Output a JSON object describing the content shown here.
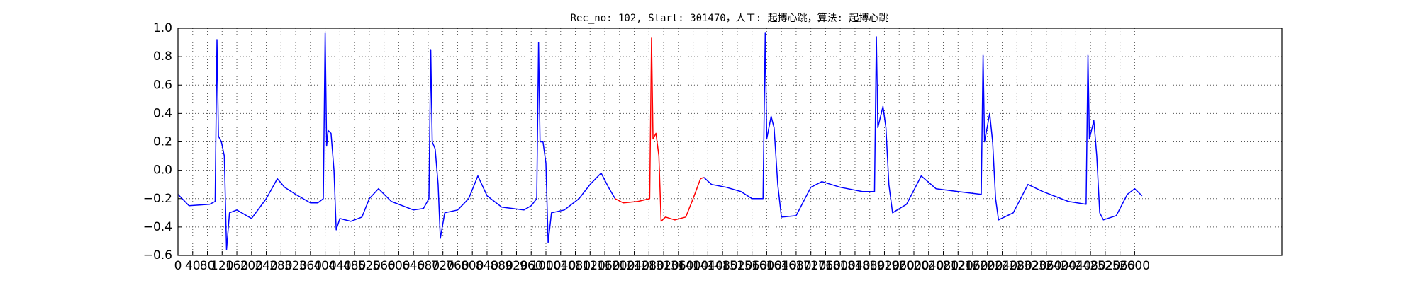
{
  "chart_data": {
    "type": "line",
    "title": "Rec_no: 102, Start: 301470，人工: 起搏心跳，算法: 起搏心跳",
    "xlim": [
      0,
      3000
    ],
    "ylim": [
      -0.6,
      1.0
    ],
    "grid": true,
    "xticks": [
      0,
      40,
      80,
      120,
      160,
      200,
      240,
      280,
      320,
      360,
      400,
      440,
      480,
      520,
      560,
      600,
      640,
      680,
      720,
      760,
      800,
      840,
      880,
      920,
      960,
      1000,
      1040,
      1080,
      1120,
      1160,
      1200,
      1240,
      1280,
      1320,
      1360,
      1400,
      1440,
      1480,
      1520,
      1560,
      1600,
      1640,
      1680,
      1720,
      1760,
      1800,
      1840,
      1880,
      1920,
      1960,
      2000,
      2040,
      2080,
      2120,
      2160,
      2200,
      2240,
      2280,
      2320,
      2360,
      2400,
      2440,
      2480,
      2520,
      2560,
      2600
    ],
    "yticks": [
      {
        "value": -0.6,
        "label": "−0.6"
      },
      {
        "value": -0.4,
        "label": "−0.4"
      },
      {
        "value": -0.2,
        "label": "−0.2"
      },
      {
        "value": 0,
        "label": "0.0"
      },
      0.2,
      0.4,
      0.6,
      0.8,
      {
        "value": 1,
        "label": "1.0"
      }
    ],
    "series": [
      {
        "color": "#0000ff",
        "x": [
          0,
          30,
          86,
          101,
          106,
          110,
          118,
          126,
          132,
          140,
          160,
          200,
          240,
          270,
          290,
          320,
          360,
          380,
          395,
          400,
          404,
          408,
          416,
          424,
          430,
          440,
          470,
          500,
          520,
          545,
          580,
          640,
          667,
          682,
          687,
          691,
          699,
          707,
          713,
          725,
          760,
          790,
          815,
          840,
          880,
          940,
          960,
          975,
          980,
          984,
          992,
          1000,
          1006,
          1015,
          1050,
          1090,
          1120,
          1150,
          1170,
          1188
        ],
        "values": [
          -0.17,
          -0.25,
          -0.24,
          -0.22,
          0.92,
          0.24,
          0.2,
          0.1,
          -0.56,
          -0.3,
          -0.28,
          -0.34,
          -0.2,
          -0.06,
          -0.12,
          -0.17,
          -0.23,
          -0.23,
          -0.2,
          0.97,
          0.17,
          0.28,
          0.26,
          0.0,
          -0.42,
          -0.34,
          -0.36,
          -0.33,
          -0.2,
          -0.13,
          -0.22,
          -0.28,
          -0.27,
          -0.2,
          0.85,
          0.2,
          0.15,
          -0.1,
          -0.48,
          -0.3,
          -0.28,
          -0.2,
          -0.04,
          -0.18,
          -0.26,
          -0.28,
          -0.25,
          -0.2,
          0.9,
          0.2,
          0.2,
          0.05,
          -0.51,
          -0.3,
          -0.28,
          -0.2,
          -0.1,
          -0.02,
          -0.12,
          -0.2
        ]
      },
      {
        "color": "#ff0000",
        "x": [
          1188,
          1210,
          1250,
          1282,
          1287,
          1291,
          1299,
          1307,
          1313,
          1325,
          1350,
          1380,
          1400,
          1420,
          1429
        ],
        "values": [
          -0.2,
          -0.23,
          -0.22,
          -0.2,
          0.93,
          0.22,
          0.26,
          0.1,
          -0.36,
          -0.33,
          -0.35,
          -0.33,
          -0.2,
          -0.06,
          -0.05
        ]
      },
      {
        "color": "#0000ff",
        "x": [
          1429,
          1450,
          1490,
          1530,
          1560,
          1590,
          1596,
          1600,
          1612,
          1620,
          1630,
          1640,
          1680,
          1720,
          1750,
          1800,
          1860,
          1893,
          1898,
          1902,
          1916,
          1924,
          1932,
          1942,
          1980,
          2020,
          2060,
          2120,
          2183,
          2188,
          2192,
          2206,
          2214,
          2222,
          2230,
          2270,
          2310,
          2350,
          2420,
          2468,
          2473,
          2477,
          2489,
          2497,
          2505,
          2515,
          2550,
          2580,
          2600,
          2620
        ],
        "values": [
          -0.05,
          -0.1,
          -0.12,
          -0.15,
          -0.2,
          -0.2,
          0.97,
          0.22,
          0.38,
          0.3,
          -0.1,
          -0.33,
          -0.32,
          -0.12,
          -0.08,
          -0.12,
          -0.15,
          -0.15,
          0.94,
          0.3,
          0.45,
          0.3,
          -0.1,
          -0.3,
          -0.24,
          -0.04,
          -0.13,
          -0.15,
          -0.17,
          0.81,
          0.2,
          0.4,
          0.2,
          -0.2,
          -0.35,
          -0.3,
          -0.1,
          -0.15,
          -0.22,
          -0.24,
          0.81,
          0.22,
          0.35,
          0.1,
          -0.3,
          -0.35,
          -0.32,
          -0.17,
          -0.13,
          -0.18
        ]
      }
    ]
  }
}
